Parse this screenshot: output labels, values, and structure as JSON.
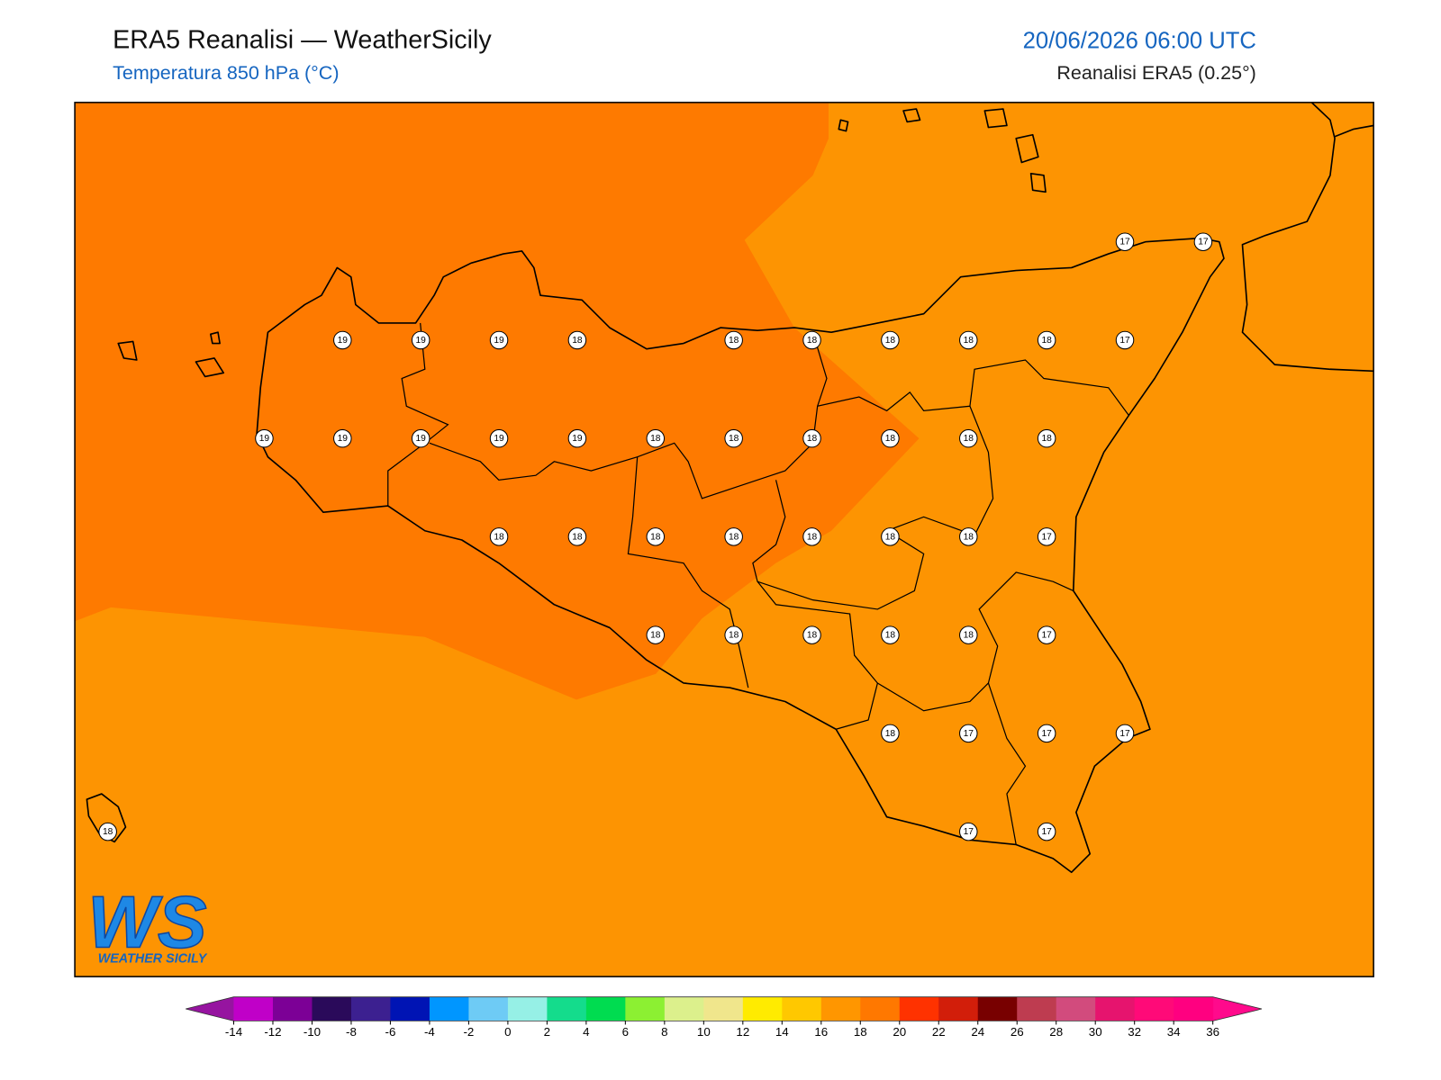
{
  "header": {
    "title": "ERA5 Reanalisi — WeatherSicily",
    "subtitle": "Temperatura 850 hPa (°C)",
    "valid_time": "20/06/2026 06:00 UTC",
    "source": "Reanalisi ERA5 (0.25°)"
  },
  "map": {
    "stations": [
      17,
      17,
      19,
      19,
      19,
      18,
      18,
      18,
      18,
      18,
      18,
      17,
      19,
      19,
      19,
      19,
      19,
      18,
      18,
      18,
      18,
      18,
      18,
      18,
      18,
      18,
      18,
      18,
      18,
      18,
      17,
      18,
      18,
      18,
      18,
      18,
      17,
      18,
      17,
      17,
      17,
      18,
      17,
      17
    ]
  },
  "logo": {
    "text": "WS",
    "subtitle": "WEATHER SICILY"
  },
  "colorbar": {
    "ticks": [
      -14,
      -12,
      -10,
      -8,
      -6,
      -4,
      -2,
      0,
      2,
      4,
      6,
      8,
      10,
      12,
      14,
      16,
      18,
      20,
      22,
      24,
      26,
      28,
      30,
      32,
      34,
      36
    ],
    "colors": [
      "#c000c8",
      "#7c0096",
      "#2a0a5a",
      "#3c2090",
      "#0014b4",
      "#0096ff",
      "#6ecbf5",
      "#96f0e6",
      "#14dc8c",
      "#00dc50",
      "#8cf032",
      "#dcf08c",
      "#f0e68c",
      "#ffeb00",
      "#ffc800",
      "#ff9600",
      "#ff7800",
      "#ff3200",
      "#d21e0a",
      "#780000",
      "#be3c50",
      "#d24b7d",
      "#e6146e",
      "#ff0a78",
      "#ff0080"
    ],
    "under_color": "#9614a0",
    "over_color": "#ff0a8c"
  }
}
